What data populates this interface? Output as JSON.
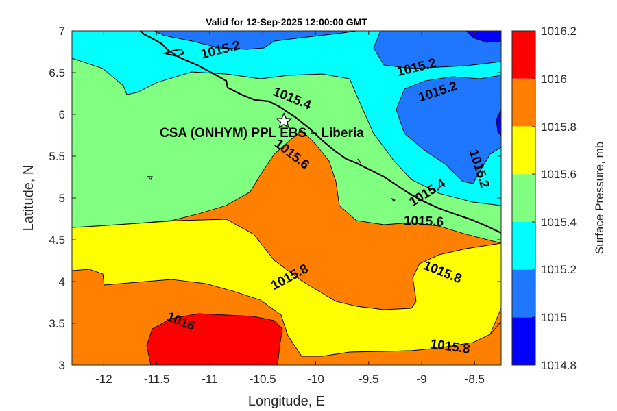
{
  "title": "Valid for 12-Sep-2025 12:00:00 GMT",
  "xlabel": "Longitude, E",
  "ylabel": "Latitude, N",
  "colorbar_label": "Surface Pressure, mb",
  "site_label": "CSA (ONHYM) PPL EBS  – Liberia",
  "site_marker": "star-icon",
  "site_location": {
    "lon": -10.3,
    "lat": 5.92
  },
  "chart_data": {
    "type": "heatmap",
    "variable": "Surface Pressure",
    "units": "mb",
    "xlim": [
      -12.3,
      -8.25
    ],
    "ylim": [
      3,
      7
    ],
    "x_ticks": [
      "-12",
      "-11.5",
      "-11",
      "-10.5",
      "-10",
      "-9.5",
      "-9",
      "-8.5"
    ],
    "x_tick_values": [
      -12,
      -11.5,
      -11,
      -10.5,
      -10,
      -9.5,
      -9,
      -8.5
    ],
    "y_ticks": [
      "3",
      "3.5",
      "4",
      "4.5",
      "5",
      "5.5",
      "6",
      "6.5",
      "7"
    ],
    "y_tick_values": [
      3,
      3.5,
      4,
      4.5,
      5,
      5.5,
      6,
      6.5,
      7
    ],
    "colorbar_ticks": [
      "1016.2",
      "1016",
      "1015.8",
      "1015.6",
      "1015.4",
      "1015.2",
      "1015",
      "1014.8"
    ],
    "levels": [
      1014.8,
      1015,
      1015.2,
      1015.4,
      1015.6,
      1015.8,
      1016,
      1016.2
    ],
    "level_colors": [
      "#0000ff",
      "#1f77ff",
      "#00ffff",
      "#80ff80",
      "#ffff00",
      "#ff8000",
      "#ff0000",
      "#800000"
    ],
    "contour_labels": [
      {
        "text": "1015.2",
        "lon": -10.9,
        "lat": 6.78,
        "angle": 14
      },
      {
        "text": "1015.2",
        "lon": -9.05,
        "lat": 6.57,
        "angle": 14
      },
      {
        "text": "1015.2",
        "lon": -8.85,
        "lat": 6.28,
        "angle": 18
      },
      {
        "text": "1015.2",
        "lon": -8.45,
        "lat": 5.35,
        "angle": -72
      },
      {
        "text": "1015.4",
        "lon": -10.22,
        "lat": 6.2,
        "angle": -22
      },
      {
        "text": "1015.4",
        "lon": -8.95,
        "lat": 5.07,
        "angle": 32
      },
      {
        "text": "1015.6",
        "lon": -10.22,
        "lat": 5.53,
        "angle": -38
      },
      {
        "text": "1015.6",
        "lon": -8.98,
        "lat": 4.73,
        "angle": -2
      },
      {
        "text": "1015.8",
        "lon": -10.25,
        "lat": 4.06,
        "angle": 28
      },
      {
        "text": "1015.8",
        "lon": -8.8,
        "lat": 4.12,
        "angle": -22
      },
      {
        "text": "1015.8",
        "lon": -8.73,
        "lat": 3.23,
        "angle": -8
      },
      {
        "text": "1016",
        "lon": -11.27,
        "lat": 3.53,
        "angle": -22
      }
    ]
  }
}
